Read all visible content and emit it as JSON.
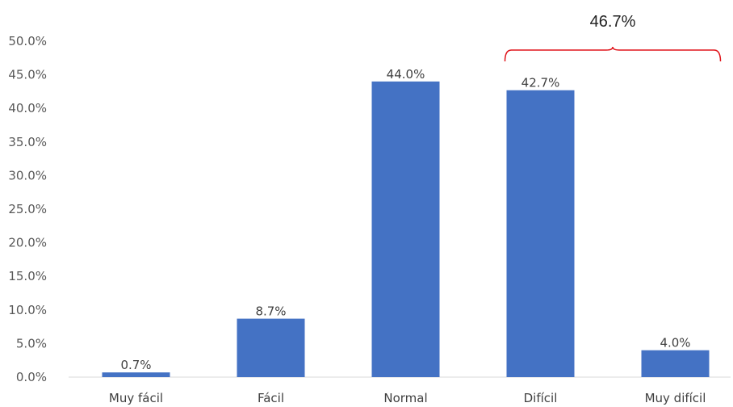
{
  "chart_data": {
    "type": "bar",
    "title": "",
    "xlabel": "",
    "ylabel": "",
    "categories": [
      "Muy fácil",
      "Fácil",
      "Normal",
      "Difícil",
      "Muy difícil"
    ],
    "values": [
      0.7,
      8.7,
      44.0,
      42.7,
      4.0
    ],
    "value_labels": [
      "0.7%",
      "8.7%",
      "44.0%",
      "42.7%",
      "4.0%"
    ],
    "ylim": [
      0,
      50
    ],
    "yticks": [
      "0.0%",
      "5.0%",
      "10.0%",
      "15.0%",
      "20.0%",
      "25.0%",
      "30.0%",
      "35.0%",
      "40.0%",
      "45.0%",
      "50.0%"
    ],
    "grid": false,
    "legend": "none",
    "bar_color": "#4472c4",
    "annotation": {
      "text": "46.7%",
      "spans_categories": [
        "Difícil",
        "Muy difícil"
      ],
      "color": "#e0151b"
    }
  }
}
